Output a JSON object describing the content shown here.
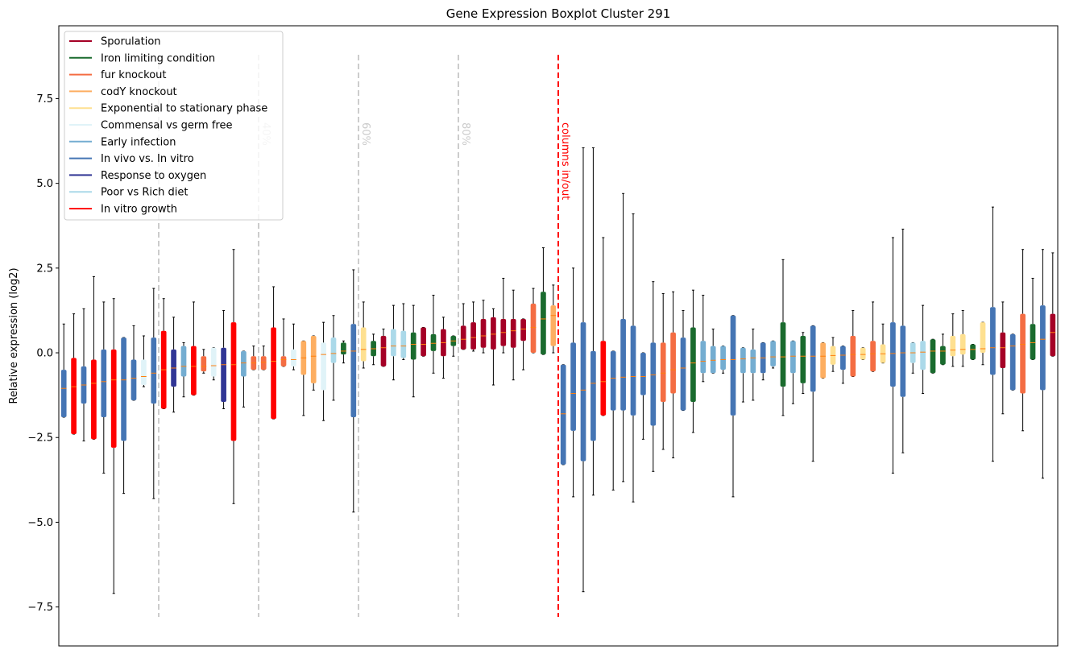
{
  "chart_data": {
    "type": "boxplot",
    "title": "Gene Expression Boxplot Cluster 291",
    "ylabel": "Relative expression (log2)",
    "ylim": [
      -8.65,
      9.65
    ],
    "yticks": [
      {
        "value": -7.5,
        "label": "−7.5"
      },
      {
        "value": -5,
        "label": "−5.0"
      },
      {
        "value": -2.5,
        "label": "−2.5"
      },
      {
        "value": 0,
        "label": "0.0"
      },
      {
        "value": 2.5,
        "label": "2.5"
      },
      {
        "value": 5,
        "label": "5.0"
      },
      {
        "value": 7.5,
        "label": "7.5"
      }
    ],
    "xlim": [
      -0.5,
      99.5
    ],
    "median_color": "#ff7f0e",
    "legend": "upper left",
    "groups": [
      {
        "name": "Sporulation",
        "color": "#a50026"
      },
      {
        "name": "Iron limiting condition",
        "color": "#1a6b2e"
      },
      {
        "name": "fur knockout",
        "color": "#f46d43"
      },
      {
        "name": "codY knockout",
        "color": "#fdae61"
      },
      {
        "name": "Exponential to stationary phase",
        "color": "#fee090"
      },
      {
        "name": "Commensal vs germ free",
        "color": "#e0f3f8"
      },
      {
        "name": "Early infection",
        "color": "#74add1"
      },
      {
        "name": "In vivo vs. In vitro",
        "color": "#4575b4"
      },
      {
        "name": "Response to oxygen",
        "color": "#313695"
      },
      {
        "name": "Poor vs Rich diet",
        "color": "#abd9e9"
      },
      {
        "name": "In vitro growth",
        "color": "#ff0000"
      }
    ],
    "vlines": [
      {
        "x": 9.5,
        "color": "#cccccc"
      },
      {
        "x": 19.5,
        "label": "40%",
        "color": "#cccccc"
      },
      {
        "x": 29.5,
        "label": "60%",
        "color": "#cccccc"
      },
      {
        "x": 39.5,
        "label": "80%",
        "color": "#cccccc"
      },
      {
        "x": 49.5,
        "label": "columns in/out",
        "color": "#ff0000"
      }
    ],
    "boxes": {
      "group": [
        7,
        10,
        7,
        10,
        7,
        10,
        7,
        7,
        5,
        7,
        10,
        8,
        6,
        10,
        2,
        5,
        8,
        10,
        6,
        2,
        2,
        10,
        2,
        5,
        3,
        3,
        5,
        9,
        1,
        7,
        4,
        1,
        0,
        9,
        9,
        1,
        0,
        1,
        0,
        1,
        0,
        0,
        0,
        0,
        0,
        0,
        0,
        2,
        1,
        3,
        7,
        7,
        7,
        7,
        10,
        7,
        7,
        7,
        7,
        7,
        2,
        2,
        7,
        1,
        6,
        6,
        6,
        7,
        6,
        6,
        7,
        6,
        1,
        6,
        1,
        7,
        3,
        4,
        7,
        2,
        4,
        2,
        4,
        7,
        7,
        9,
        9,
        1,
        1,
        4,
        4,
        1,
        4,
        7,
        0,
        7,
        2,
        1,
        7,
        0
      ],
      "low": [
        -1.9,
        -2.4,
        -2.6,
        -2.55,
        -3.55,
        -7.1,
        -4.15,
        -1.4,
        -1.0,
        -4.3,
        -1.65,
        -1.75,
        -1.3,
        -1.25,
        -0.6,
        -0.8,
        -1.65,
        -4.45,
        -1.6,
        -0.5,
        -0.5,
        -1.95,
        -0.4,
        -0.5,
        -1.85,
        -1.1,
        -2.0,
        -1.4,
        -0.3,
        -4.7,
        -0.45,
        -0.35,
        -0.4,
        -0.8,
        -0.2,
        -1.3,
        -0.1,
        -0.6,
        -0.75,
        -0.1,
        0.1,
        0.05,
        0.0,
        -0.95,
        0.0,
        -0.8,
        -0.5,
        0.0,
        -0.05,
        0.0,
        -3.3,
        -4.25,
        -7.05,
        -4.2,
        -1.85,
        -4.05,
        -3.8,
        -4.4,
        -2.55,
        -3.5,
        -2.85,
        -3.1,
        -1.7,
        -2.35,
        -0.85,
        -0.6,
        -0.6,
        -4.25,
        -1.45,
        -1.4,
        -0.8,
        -0.45,
        -1.85,
        -1.5,
        -1.2,
        -3.2,
        -0.75,
        -0.55,
        -0.9,
        -0.7,
        -0.2,
        -0.55,
        -0.3,
        -3.55,
        -2.95,
        -0.6,
        -1.2,
        -0.6,
        -0.35,
        -0.4,
        -0.4,
        -0.2,
        -0.35,
        -3.2,
        -1.8,
        -1.1,
        -2.3,
        -0.2,
        -3.7,
        -0.1
      ],
      "q1": [
        -1.9,
        -2.4,
        -1.5,
        -2.55,
        -1.9,
        -2.8,
        -2.6,
        -1.4,
        -0.95,
        -1.5,
        -1.65,
        -1.0,
        -0.7,
        -1.25,
        -0.55,
        -0.7,
        -1.45,
        -2.6,
        -0.7,
        -0.5,
        -0.5,
        -1.95,
        -0.4,
        -0.4,
        -0.65,
        -0.9,
        -1.1,
        -0.3,
        -0.05,
        -1.9,
        -0.25,
        -0.1,
        -0.4,
        -0.1,
        -0.15,
        -0.2,
        -0.1,
        0.05,
        -0.1,
        0.2,
        0.1,
        0.1,
        0.15,
        0.1,
        0.2,
        0.15,
        0.35,
        0.0,
        -0.05,
        0.2,
        -3.3,
        -2.3,
        -3.2,
        -2.6,
        -1.85,
        -1.7,
        -1.7,
        -1.85,
        -1.25,
        -2.15,
        -1.45,
        -1.2,
        -1.7,
        -1.45,
        -0.6,
        -0.6,
        -0.5,
        -1.85,
        -0.6,
        -0.6,
        -0.6,
        -0.4,
        -1.0,
        -0.6,
        -0.9,
        -1.15,
        -0.75,
        -0.35,
        -0.5,
        -0.7,
        -0.2,
        -0.55,
        -0.3,
        -1.0,
        -1.3,
        -0.3,
        -0.5,
        -0.6,
        -0.35,
        -0.1,
        -0.05,
        -0.2,
        0.0,
        -0.65,
        -0.45,
        -1.1,
        -1.2,
        -0.2,
        -1.1,
        -0.1
      ],
      "med": [
        -1.05,
        -1.0,
        -0.95,
        -0.9,
        -0.85,
        -0.8,
        -0.8,
        -0.75,
        -0.7,
        -0.6,
        -0.5,
        -0.45,
        -0.4,
        -0.4,
        -0.4,
        -0.38,
        -0.35,
        -0.35,
        -0.3,
        -0.3,
        -0.28,
        -0.25,
        -0.2,
        -0.2,
        -0.15,
        -0.1,
        -0.05,
        -0.02,
        0.05,
        0.05,
        0.1,
        0.12,
        0.15,
        0.2,
        0.2,
        0.25,
        0.25,
        0.28,
        0.3,
        0.35,
        0.4,
        0.45,
        0.5,
        0.55,
        0.6,
        0.65,
        0.7,
        0.75,
        1.0,
        1.1,
        -1.8,
        -1.2,
        -1.1,
        -0.9,
        -0.85,
        -0.75,
        -0.72,
        -0.7,
        -0.7,
        -0.65,
        -0.6,
        -0.5,
        -0.45,
        -0.3,
        -0.25,
        -0.22,
        -0.2,
        -0.2,
        -0.18,
        -0.15,
        -0.15,
        -0.12,
        -0.12,
        -0.1,
        -0.1,
        -0.1,
        -0.1,
        -0.08,
        -0.07,
        -0.05,
        -0.05,
        -0.03,
        -0.03,
        -0.02,
        0.0,
        0.0,
        0.02,
        0.05,
        0.05,
        0.08,
        0.1,
        0.1,
        0.12,
        0.15,
        0.15,
        0.2,
        0.25,
        0.3,
        0.4,
        0.6
      ],
      "q3": [
        -0.5,
        -0.15,
        -0.4,
        -0.2,
        0.1,
        0.1,
        0.45,
        -0.2,
        -0.2,
        0.45,
        0.65,
        0.1,
        0.2,
        0.2,
        -0.1,
        0.15,
        0.15,
        0.9,
        0.05,
        -0.1,
        -0.1,
        0.75,
        -0.1,
        0.1,
        0.35,
        0.5,
        0.3,
        0.45,
        0.3,
        0.85,
        0.75,
        0.35,
        0.5,
        0.7,
        0.65,
        0.6,
        0.75,
        0.55,
        0.7,
        0.5,
        0.8,
        0.9,
        1.0,
        1.05,
        1.0,
        1.0,
        1.0,
        1.45,
        1.8,
        1.4,
        -0.35,
        0.3,
        0.9,
        0.05,
        0.35,
        0.05,
        1.0,
        0.8,
        0.0,
        0.3,
        0.3,
        0.6,
        0.45,
        0.75,
        0.35,
        0.2,
        0.2,
        1.1,
        0.15,
        0.1,
        0.3,
        0.35,
        0.9,
        0.35,
        0.5,
        0.8,
        0.3,
        0.2,
        0.2,
        0.5,
        0.15,
        0.35,
        0.25,
        0.9,
        0.8,
        0.3,
        0.35,
        0.4,
        0.2,
        0.5,
        0.55,
        0.25,
        0.9,
        1.35,
        0.6,
        0.55,
        1.15,
        0.85,
        1.4,
        1.15
      ],
      "high": [
        0.85,
        1.15,
        1.3,
        2.25,
        1.5,
        1.6,
        0.45,
        0.8,
        0.5,
        1.9,
        1.6,
        1.05,
        0.3,
        1.5,
        0.1,
        0.15,
        1.25,
        3.05,
        0.05,
        0.2,
        0.2,
        1.95,
        1.0,
        0.85,
        0.35,
        0.5,
        0.9,
        1.1,
        0.35,
        2.45,
        1.5,
        0.55,
        0.7,
        1.4,
        1.45,
        1.4,
        0.75,
        1.7,
        1.05,
        0.5,
        1.45,
        1.5,
        1.55,
        1.3,
        2.2,
        1.85,
        1.0,
        1.9,
        3.1,
        2.0,
        -0.35,
        2.5,
        6.05,
        6.05,
        3.4,
        0.05,
        4.7,
        4.1,
        0.0,
        2.1,
        1.75,
        1.8,
        1.25,
        1.85,
        1.7,
        0.7,
        0.2,
        1.1,
        0.15,
        0.7,
        0.3,
        0.35,
        2.75,
        0.35,
        0.6,
        0.8,
        0.3,
        0.45,
        0.2,
        1.25,
        0.15,
        1.5,
        0.85,
        3.4,
        3.65,
        0.3,
        1.4,
        0.4,
        0.55,
        1.15,
        1.25,
        0.25,
        0.9,
        4.3,
        1.5,
        0.55,
        3.05,
        2.2,
        3.05,
        2.95
      ]
    }
  }
}
